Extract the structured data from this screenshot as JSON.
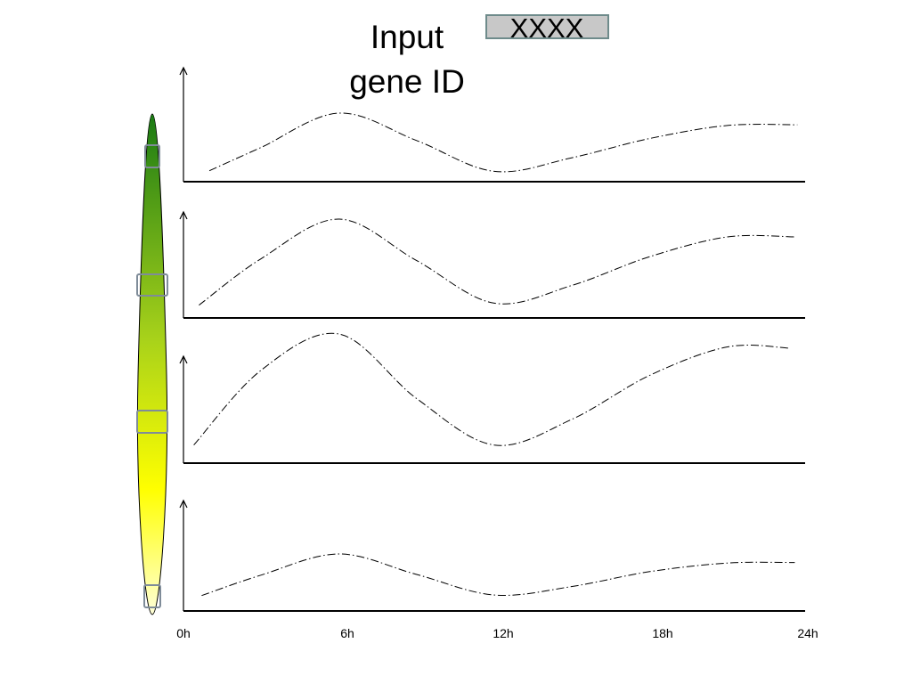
{
  "header": {
    "title_lines": [
      "Input",
      "gene ID"
    ],
    "gene_id_value": "XXXX"
  },
  "time_axis": {
    "ticks": [
      "0h",
      "6h",
      "12h",
      "18h",
      "24h"
    ],
    "hours": [
      0,
      6,
      12,
      18,
      24
    ]
  },
  "organ_bar": {
    "gradient_colors": [
      "#1a7a14",
      "#a8d21a",
      "#ffff00",
      "#ffffd8"
    ],
    "marker_count": 4,
    "marker_stroke": "#7f8c99"
  },
  "profiles": [
    {
      "label": "",
      "points": [
        [
          1,
          0.16
        ],
        [
          3,
          0.5
        ],
        [
          6,
          1.0
        ],
        [
          9,
          0.6
        ],
        [
          12,
          0.15
        ],
        [
          15,
          0.35
        ],
        [
          18,
          0.63
        ],
        [
          21,
          0.82
        ],
        [
          23.7,
          0.83
        ]
      ]
    },
    {
      "label": "",
      "points": [
        [
          0.6,
          0.13
        ],
        [
          3,
          0.6
        ],
        [
          6,
          1.0
        ],
        [
          9,
          0.58
        ],
        [
          12,
          0.15
        ],
        [
          15,
          0.33
        ],
        [
          18,
          0.62
        ],
        [
          21,
          0.82
        ],
        [
          23.6,
          0.82
        ]
      ]
    },
    {
      "label": "",
      "points": [
        [
          0.4,
          0.14
        ],
        [
          3,
          0.72
        ],
        [
          6,
          1.0
        ],
        [
          9,
          0.5
        ],
        [
          12,
          0.14
        ],
        [
          15,
          0.34
        ],
        [
          18,
          0.68
        ],
        [
          21,
          0.9
        ],
        [
          23.4,
          0.89
        ]
      ]
    },
    {
      "label": "",
      "points": [
        [
          0.7,
          0.27
        ],
        [
          3,
          0.63
        ],
        [
          6,
          1.0
        ],
        [
          9,
          0.64
        ],
        [
          12,
          0.28
        ],
        [
          15,
          0.43
        ],
        [
          18,
          0.69
        ],
        [
          21,
          0.84
        ],
        [
          23.6,
          0.85
        ]
      ]
    }
  ]
}
